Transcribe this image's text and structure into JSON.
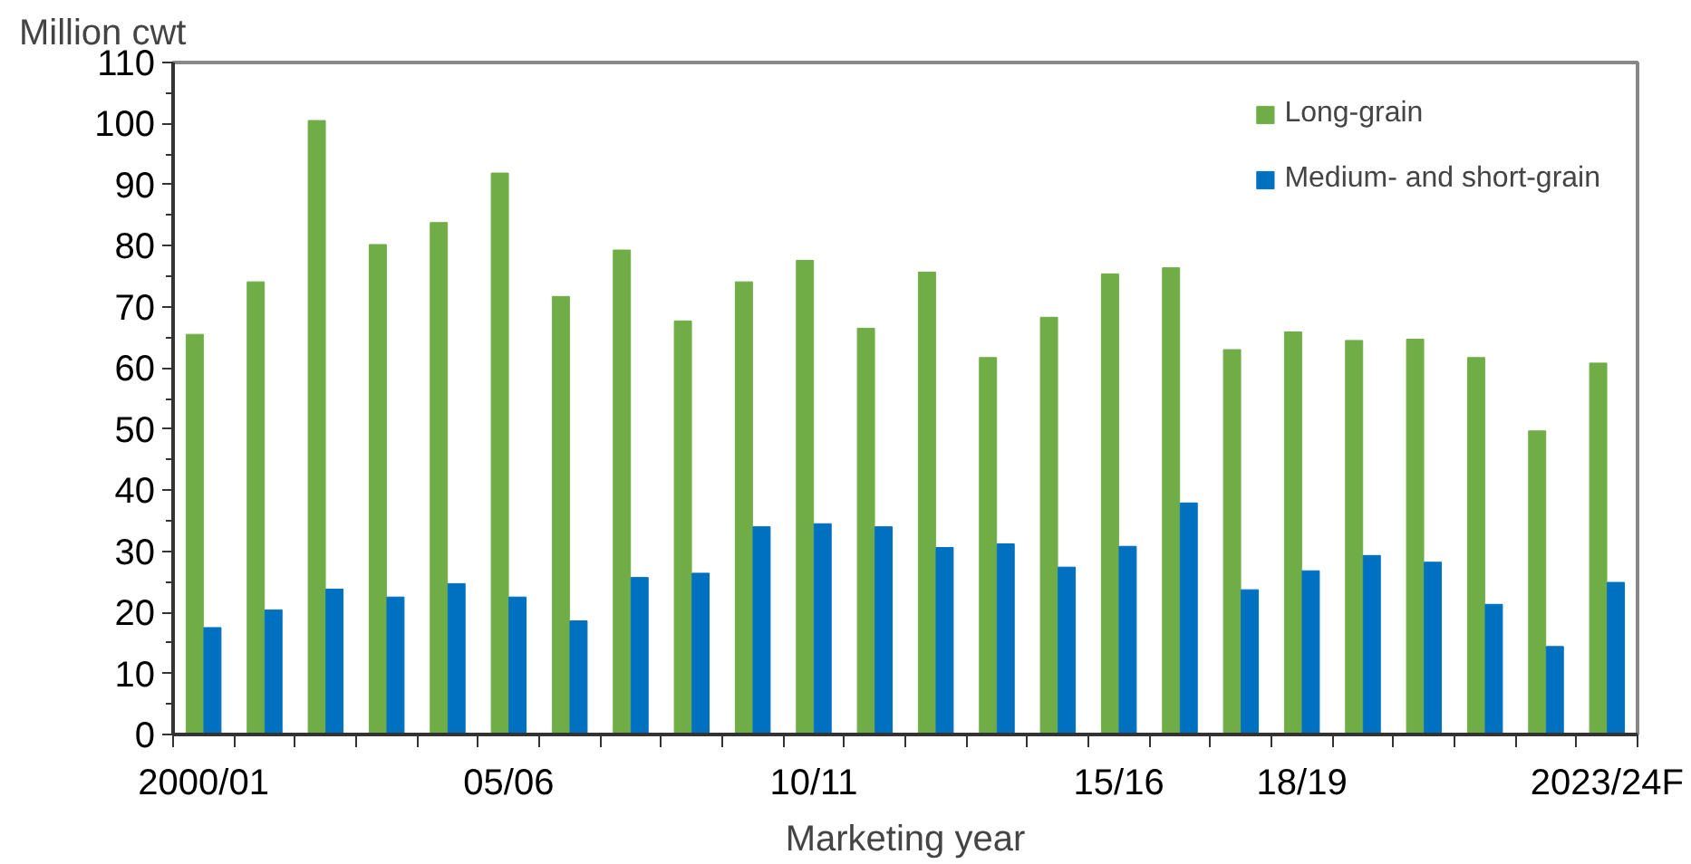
{
  "chart_data": {
    "type": "bar",
    "ylabel": "Million cwt",
    "xlabel": "Marketing year",
    "categories": [
      "2000/01",
      null,
      null,
      null,
      null,
      "05/06",
      null,
      null,
      null,
      null,
      "10/11",
      null,
      null,
      null,
      null,
      "15/16",
      null,
      null,
      "18/19",
      null,
      null,
      null,
      null,
      "2023/24F"
    ],
    "series": [
      {
        "name": "Long-grain",
        "color": "#70ad47",
        "values": [
          65.5,
          74.1,
          100.5,
          80.2,
          83.8,
          91.9,
          71.7,
          79.3,
          67.7,
          74.1,
          77.6,
          66.5,
          75.7,
          61.7,
          68.3,
          75.4,
          76.4,
          63.0,
          65.9,
          64.5,
          64.7,
          61.7,
          49.7,
          60.8
        ]
      },
      {
        "name": "Medium- and short-grain",
        "color": "#0070c0",
        "values": [
          17.5,
          20.4,
          23.8,
          22.5,
          24.7,
          22.5,
          18.6,
          25.7,
          26.4,
          34.0,
          34.5,
          34.0,
          30.6,
          31.2,
          27.4,
          30.8,
          37.9,
          23.7,
          26.8,
          29.3,
          28.2,
          21.3,
          14.4,
          24.9
        ]
      }
    ],
    "ylim": [
      0,
      110
    ],
    "yticks": [
      0,
      10,
      20,
      30,
      40,
      50,
      60,
      70,
      80,
      90,
      100,
      110
    ],
    "grid": false,
    "legend": "top right"
  }
}
